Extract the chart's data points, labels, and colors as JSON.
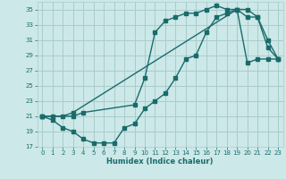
{
  "xlabel": "Humidex (Indice chaleur)",
  "bg_color": "#cce8e8",
  "grid_color": "#aacccc",
  "line_color": "#1a6b6b",
  "xlim": [
    -0.5,
    23.5
  ],
  "ylim": [
    17,
    36
  ],
  "xticks": [
    0,
    1,
    2,
    3,
    4,
    5,
    6,
    7,
    8,
    9,
    10,
    11,
    12,
    13,
    14,
    15,
    16,
    17,
    18,
    19,
    20,
    21,
    22,
    23
  ],
  "yticks": [
    17,
    19,
    21,
    23,
    25,
    27,
    29,
    31,
    33,
    35
  ],
  "line1_x": [
    0,
    1,
    2,
    3,
    4,
    5,
    6,
    7,
    8,
    9,
    10,
    11,
    12,
    13,
    14,
    15,
    16,
    17,
    18,
    19,
    20,
    21,
    22,
    23
  ],
  "line1_y": [
    21,
    20.5,
    19.5,
    19,
    18,
    17.5,
    17.5,
    17.5,
    19.5,
    20,
    22,
    23,
    24,
    26,
    28.5,
    29,
    32,
    34,
    34.5,
    35,
    35,
    34,
    31,
    28.5
  ],
  "line2_x": [
    0,
    3,
    4,
    9,
    10,
    11,
    12,
    13,
    14,
    15,
    16,
    17,
    18,
    19,
    20,
    21,
    22,
    23
  ],
  "line2_y": [
    21,
    21,
    21.5,
    22.5,
    26,
    32,
    33.5,
    34,
    34.5,
    34.5,
    35,
    35.5,
    35,
    35,
    34,
    34,
    30,
    28.5
  ],
  "line3_x": [
    0,
    1,
    2,
    3,
    19,
    20,
    21,
    22,
    23
  ],
  "line3_y": [
    21,
    21,
    21,
    21.5,
    35,
    28,
    28.5,
    28.5,
    28.5
  ]
}
